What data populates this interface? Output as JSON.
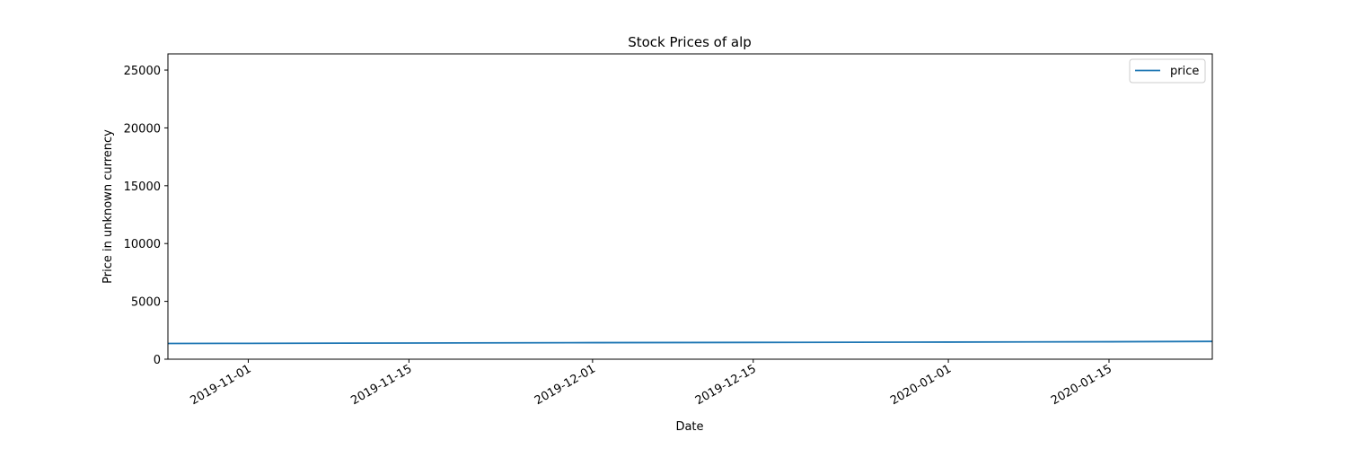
{
  "chart_data": {
    "type": "line",
    "title": "Stock Prices of alp",
    "xlabel": "Date",
    "ylabel": "Price in unknown currency",
    "x_axis_type": "date",
    "xlim": [
      "2019-10-25",
      "2020-01-24"
    ],
    "ylim": [
      0,
      26400
    ],
    "x_ticks": [
      "2019-11-01",
      "2019-11-15",
      "2019-12-01",
      "2019-12-15",
      "2020-01-01",
      "2020-01-15"
    ],
    "y_ticks": [
      0,
      5000,
      10000,
      15000,
      20000,
      25000
    ],
    "grid": false,
    "legend_position": "top-right",
    "colors": {
      "price": "#1f77b4"
    },
    "series": [
      {
        "name": "price",
        "x": [
          "2019-10-25",
          "2019-11-01",
          "2019-11-15",
          "2019-12-01",
          "2019-12-15",
          "2020-01-01",
          "2020-01-15",
          "2020-01-24"
        ],
        "values": [
          1360,
          1370,
          1400,
          1430,
          1450,
          1480,
          1510,
          1540
        ]
      }
    ]
  }
}
